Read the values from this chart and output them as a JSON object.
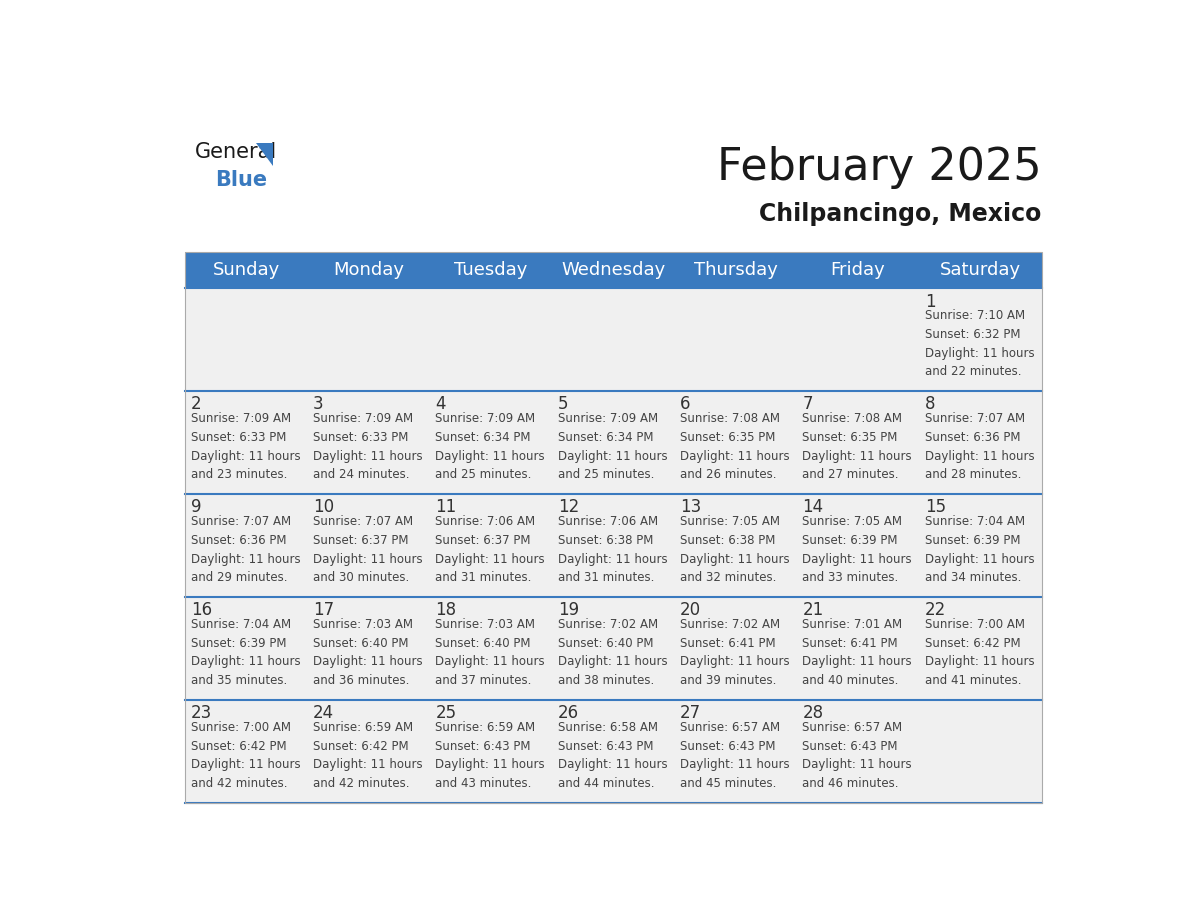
{
  "title": "February 2025",
  "subtitle": "Chilpancingo, Mexico",
  "header_color": "#3a7abf",
  "header_text_color": "#ffffff",
  "background_color": "#ffffff",
  "cell_bg_color": "#f0f0f0",
  "row_line_color": "#3a7abf",
  "day_headers": [
    "Sunday",
    "Monday",
    "Tuesday",
    "Wednesday",
    "Thursday",
    "Friday",
    "Saturday"
  ],
  "days": [
    {
      "day": 1,
      "col": 6,
      "row": 0,
      "sunrise": "7:10 AM",
      "sunset": "6:32 PM",
      "daylight_min": 22
    },
    {
      "day": 2,
      "col": 0,
      "row": 1,
      "sunrise": "7:09 AM",
      "sunset": "6:33 PM",
      "daylight_min": 23
    },
    {
      "day": 3,
      "col": 1,
      "row": 1,
      "sunrise": "7:09 AM",
      "sunset": "6:33 PM",
      "daylight_min": 24
    },
    {
      "day": 4,
      "col": 2,
      "row": 1,
      "sunrise": "7:09 AM",
      "sunset": "6:34 PM",
      "daylight_min": 25
    },
    {
      "day": 5,
      "col": 3,
      "row": 1,
      "sunrise": "7:09 AM",
      "sunset": "6:34 PM",
      "daylight_min": 25
    },
    {
      "day": 6,
      "col": 4,
      "row": 1,
      "sunrise": "7:08 AM",
      "sunset": "6:35 PM",
      "daylight_min": 26
    },
    {
      "day": 7,
      "col": 5,
      "row": 1,
      "sunrise": "7:08 AM",
      "sunset": "6:35 PM",
      "daylight_min": 27
    },
    {
      "day": 8,
      "col": 6,
      "row": 1,
      "sunrise": "7:07 AM",
      "sunset": "6:36 PM",
      "daylight_min": 28
    },
    {
      "day": 9,
      "col": 0,
      "row": 2,
      "sunrise": "7:07 AM",
      "sunset": "6:36 PM",
      "daylight_min": 29
    },
    {
      "day": 10,
      "col": 1,
      "row": 2,
      "sunrise": "7:07 AM",
      "sunset": "6:37 PM",
      "daylight_min": 30
    },
    {
      "day": 11,
      "col": 2,
      "row": 2,
      "sunrise": "7:06 AM",
      "sunset": "6:37 PM",
      "daylight_min": 31
    },
    {
      "day": 12,
      "col": 3,
      "row": 2,
      "sunrise": "7:06 AM",
      "sunset": "6:38 PM",
      "daylight_min": 31
    },
    {
      "day": 13,
      "col": 4,
      "row": 2,
      "sunrise": "7:05 AM",
      "sunset": "6:38 PM",
      "daylight_min": 32
    },
    {
      "day": 14,
      "col": 5,
      "row": 2,
      "sunrise": "7:05 AM",
      "sunset": "6:39 PM",
      "daylight_min": 33
    },
    {
      "day": 15,
      "col": 6,
      "row": 2,
      "sunrise": "7:04 AM",
      "sunset": "6:39 PM",
      "daylight_min": 34
    },
    {
      "day": 16,
      "col": 0,
      "row": 3,
      "sunrise": "7:04 AM",
      "sunset": "6:39 PM",
      "daylight_min": 35
    },
    {
      "day": 17,
      "col": 1,
      "row": 3,
      "sunrise": "7:03 AM",
      "sunset": "6:40 PM",
      "daylight_min": 36
    },
    {
      "day": 18,
      "col": 2,
      "row": 3,
      "sunrise": "7:03 AM",
      "sunset": "6:40 PM",
      "daylight_min": 37
    },
    {
      "day": 19,
      "col": 3,
      "row": 3,
      "sunrise": "7:02 AM",
      "sunset": "6:40 PM",
      "daylight_min": 38
    },
    {
      "day": 20,
      "col": 4,
      "row": 3,
      "sunrise": "7:02 AM",
      "sunset": "6:41 PM",
      "daylight_min": 39
    },
    {
      "day": 21,
      "col": 5,
      "row": 3,
      "sunrise": "7:01 AM",
      "sunset": "6:41 PM",
      "daylight_min": 40
    },
    {
      "day": 22,
      "col": 6,
      "row": 3,
      "sunrise": "7:00 AM",
      "sunset": "6:42 PM",
      "daylight_min": 41
    },
    {
      "day": 23,
      "col": 0,
      "row": 4,
      "sunrise": "7:00 AM",
      "sunset": "6:42 PM",
      "daylight_min": 42
    },
    {
      "day": 24,
      "col": 1,
      "row": 4,
      "sunrise": "6:59 AM",
      "sunset": "6:42 PM",
      "daylight_min": 42
    },
    {
      "day": 25,
      "col": 2,
      "row": 4,
      "sunrise": "6:59 AM",
      "sunset": "6:43 PM",
      "daylight_min": 43
    },
    {
      "day": 26,
      "col": 3,
      "row": 4,
      "sunrise": "6:58 AM",
      "sunset": "6:43 PM",
      "daylight_min": 44
    },
    {
      "day": 27,
      "col": 4,
      "row": 4,
      "sunrise": "6:57 AM",
      "sunset": "6:43 PM",
      "daylight_min": 45
    },
    {
      "day": 28,
      "col": 5,
      "row": 4,
      "sunrise": "6:57 AM",
      "sunset": "6:43 PM",
      "daylight_min": 46
    }
  ],
  "num_rows": 5,
  "num_cols": 7,
  "title_fontsize": 32,
  "subtitle_fontsize": 17,
  "header_fontsize": 13,
  "day_num_fontsize": 12,
  "cell_text_fontsize": 8.5,
  "logo_color_general": "#1a1a1a",
  "logo_color_blue": "#3a7abf",
  "logo_triangle_color": "#3a7abf"
}
